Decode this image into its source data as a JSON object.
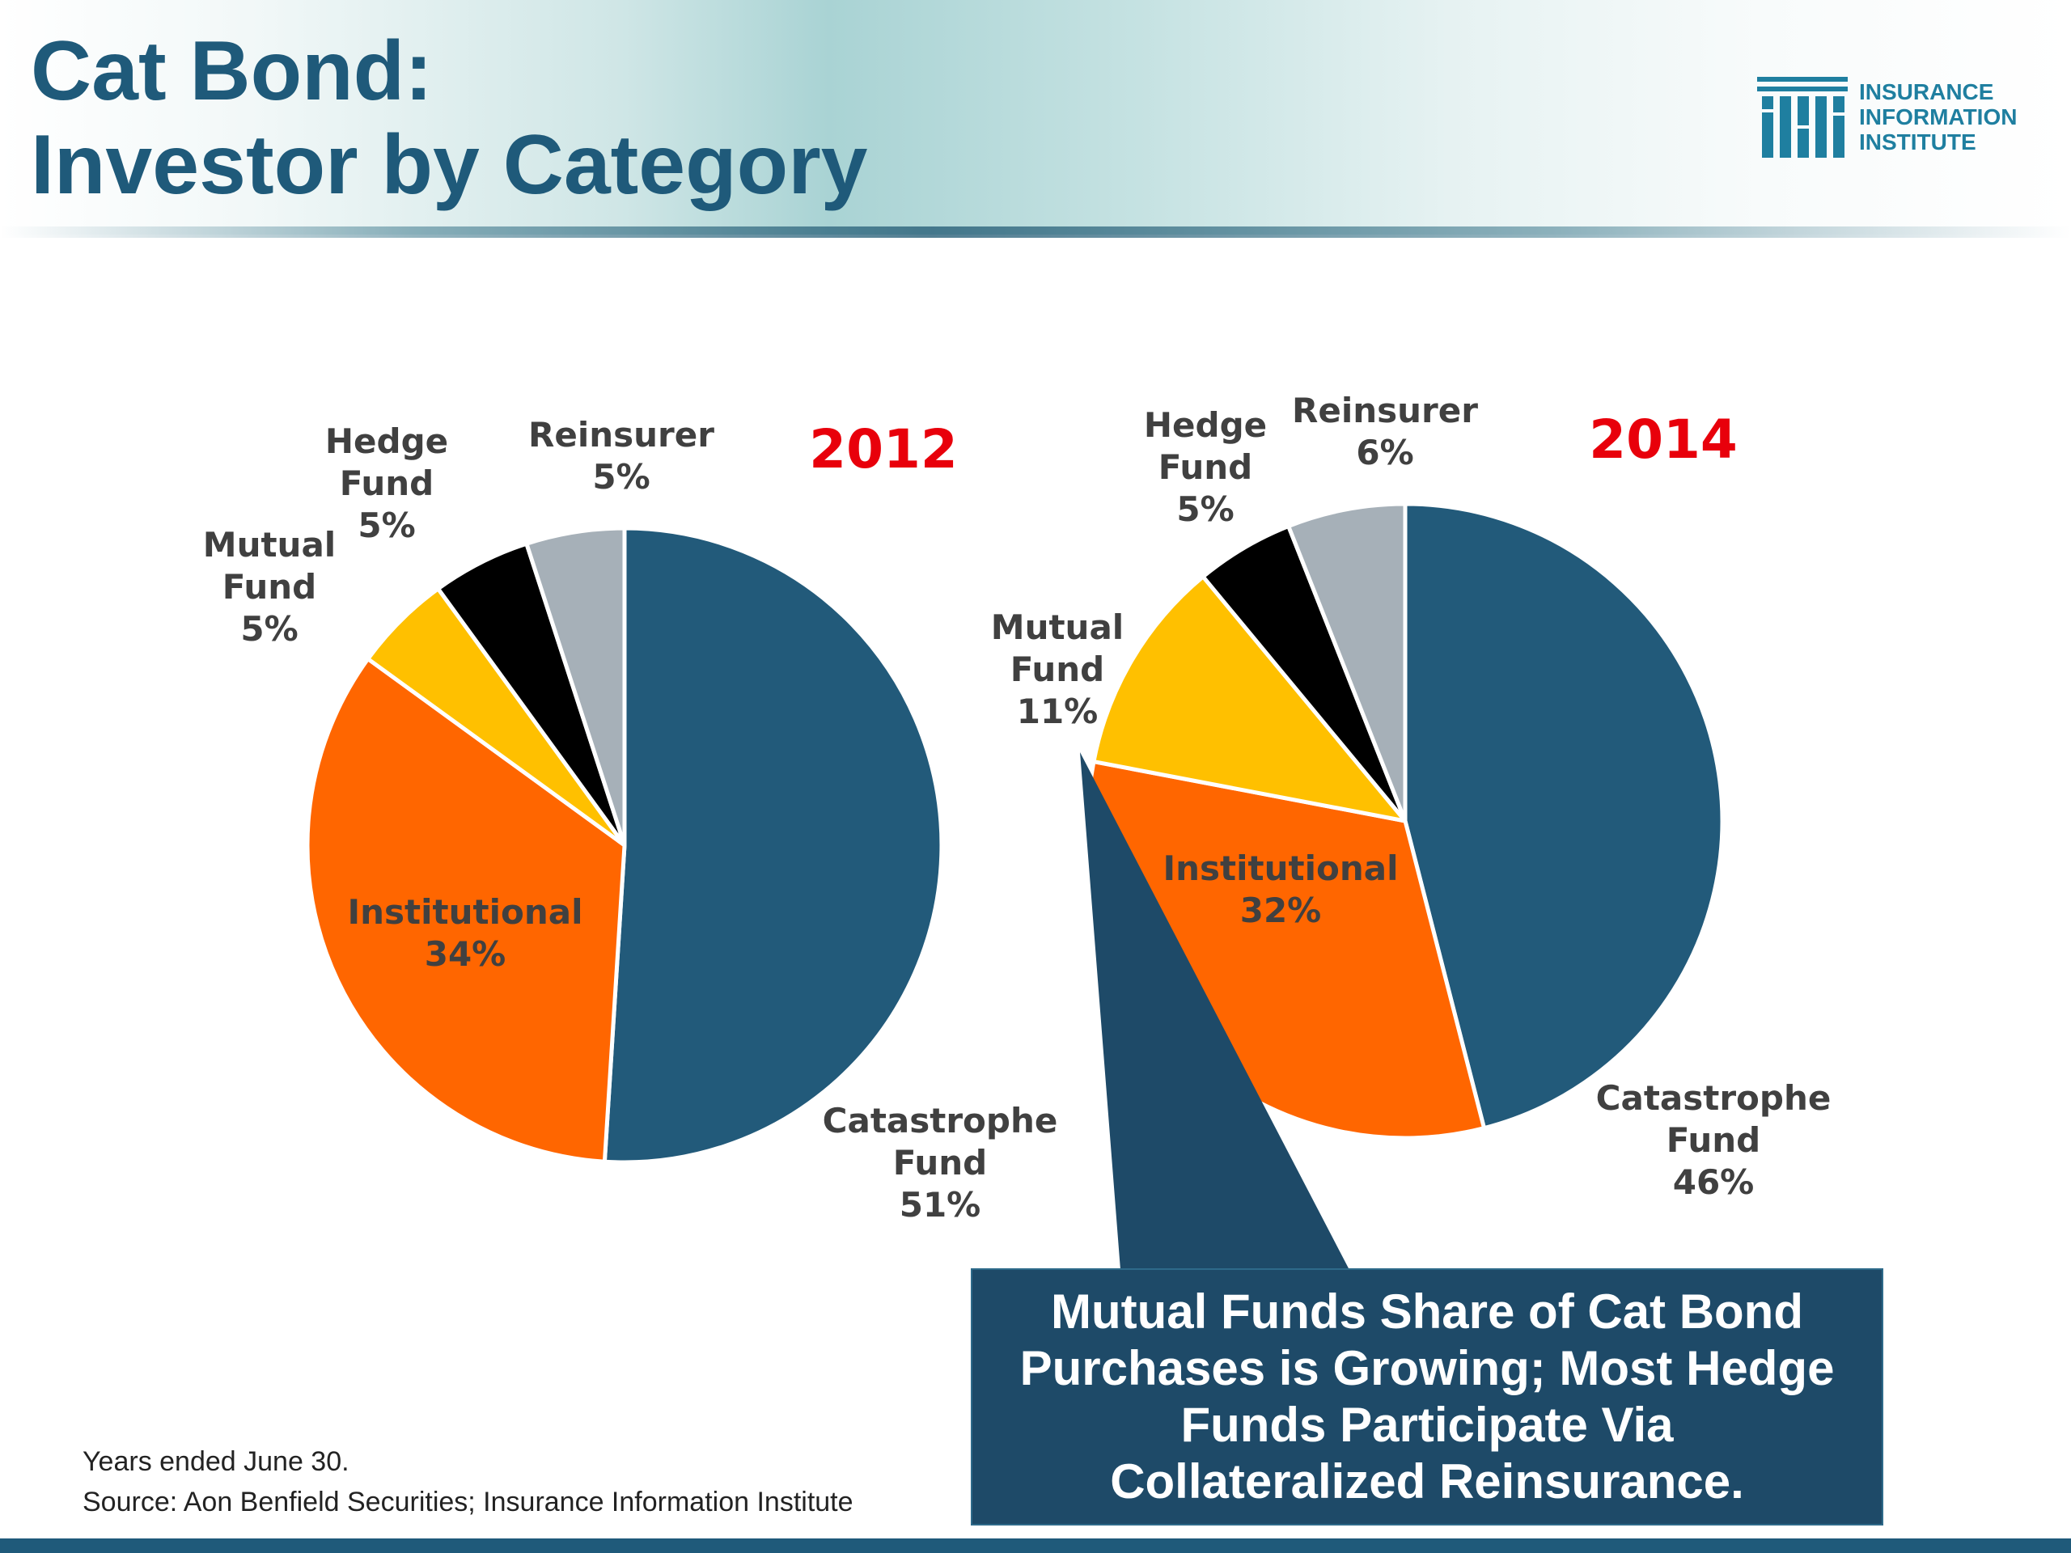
{
  "title": {
    "line1": "Cat Bond:",
    "line2": "Investor by Category"
  },
  "logo": {
    "text": "INSURANCE\nINFORMATION\nINSTITUTE"
  },
  "chart_data": [
    {
      "type": "pie",
      "title": "2012",
      "slices": [
        {
          "label": "Catastrophe Fund",
          "value": 51,
          "color": "#225a7a"
        },
        {
          "label": "Institutional",
          "value": 34,
          "color": "#ff6600"
        },
        {
          "label": "Mutual Fund",
          "value": 5,
          "color": "#ffc000"
        },
        {
          "label": "Hedge Fund",
          "value": 5,
          "color": "#000000"
        },
        {
          "label": "Reinsurer",
          "value": 5,
          "color": "#a6b0b8"
        }
      ]
    },
    {
      "type": "pie",
      "title": "2014",
      "slices": [
        {
          "label": "Catastrophe Fund",
          "value": 46,
          "color": "#225a7a"
        },
        {
          "label": "Institutional",
          "value": 32,
          "color": "#ff6600"
        },
        {
          "label": "Mutual Fund",
          "value": 11,
          "color": "#ffc000"
        },
        {
          "label": "Hedge Fund",
          "value": 5,
          "color": "#000000"
        },
        {
          "label": "Reinsurer",
          "value": 6,
          "color": "#a6b0b8"
        }
      ]
    }
  ],
  "callout": {
    "text": "Mutual Funds Share of Cat Bond\nPurchases is Growing; Most Hedge\nFunds Participate Via\nCollateralized Reinsurance."
  },
  "notes": {
    "years": "Years ended June 30.",
    "source": "Source: Aon Benfield Securities; Insurance Information Institute"
  }
}
